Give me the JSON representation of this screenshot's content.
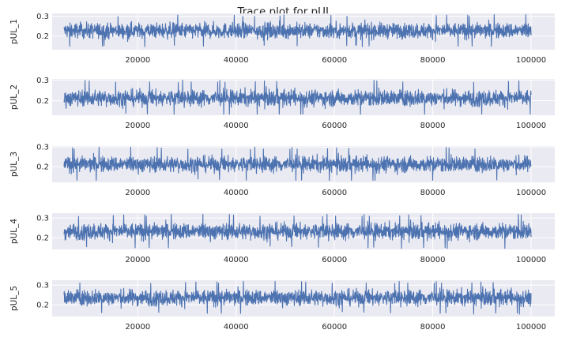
{
  "chart_data": {
    "type": "line",
    "title": "Trace plot for pUL",
    "x_range": [
      5000,
      100000
    ],
    "xticks": [
      20000,
      40000,
      60000,
      80000,
      100000
    ],
    "yticks": [
      0.2,
      0.3
    ],
    "grid": true,
    "line_color": "#4c72b0",
    "panel_bg": "#eaeaf2",
    "panels": [
      {
        "ylabel": "pUL_1",
        "ylim": [
          0.13,
          0.315
        ],
        "mean": 0.227,
        "lower": 0.145,
        "upper": 0.31
      },
      {
        "ylabel": "pUL_2",
        "ylim": [
          0.13,
          0.305
        ],
        "mean": 0.213,
        "lower": 0.135,
        "upper": 0.3
      },
      {
        "ylabel": "pUL_3",
        "ylim": [
          0.12,
          0.305
        ],
        "mean": 0.212,
        "lower": 0.13,
        "upper": 0.3
      },
      {
        "ylabel": "pUL_4",
        "ylim": [
          0.14,
          0.325
        ],
        "mean": 0.232,
        "lower": 0.145,
        "upper": 0.32
      },
      {
        "ylabel": "pUL_5",
        "ylim": [
          0.14,
          0.325
        ],
        "mean": 0.236,
        "lower": 0.15,
        "upper": 0.32
      }
    ]
  }
}
